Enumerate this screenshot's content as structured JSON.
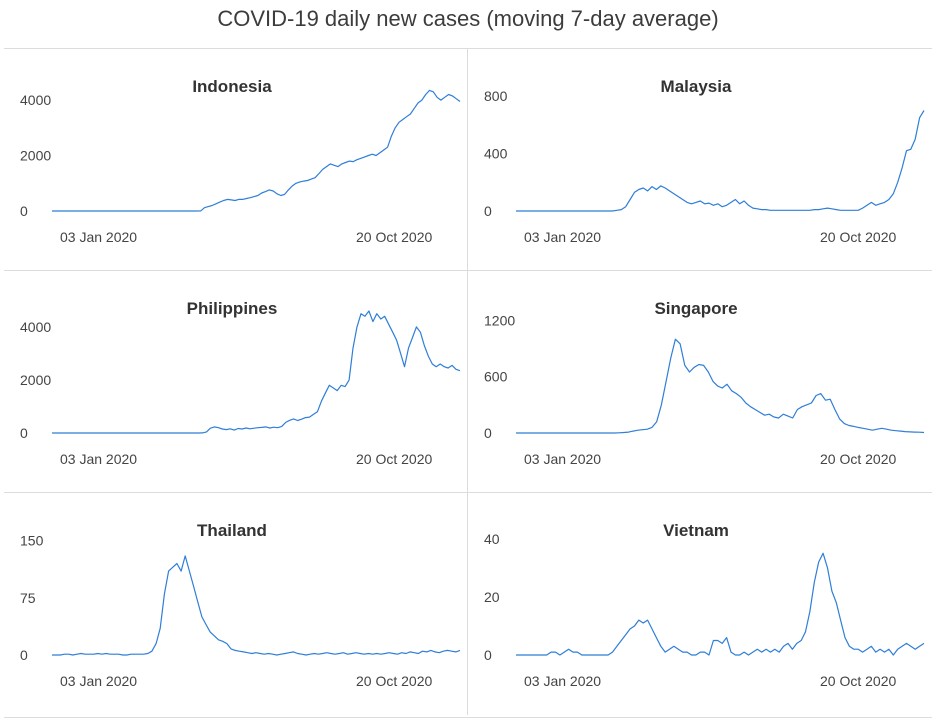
{
  "title": "COVID-19 daily new cases (moving 7-day average)",
  "colors": {
    "line": "#2f7ed8",
    "grid_border": "#dcdcdc"
  },
  "chart_data": [
    {
      "type": "line",
      "title": "Indonesia",
      "x_tick_labels": [
        "03 Jan 2020",
        "20 Oct 2020"
      ],
      "y_ticks": [
        0,
        2000,
        4000
      ],
      "ylim": [
        0,
        4400
      ],
      "series": [
        {
          "values": [
            0,
            0,
            0,
            0,
            0,
            0,
            0,
            0,
            0,
            0,
            0,
            0,
            0,
            0,
            0,
            0,
            0,
            0,
            0,
            0,
            0,
            0,
            0,
            0,
            0,
            0,
            0,
            0,
            0,
            0,
            0,
            0,
            0,
            0,
            0,
            0,
            0,
            0,
            0,
            5,
            120,
            160,
            200,
            260,
            320,
            380,
            420,
            400,
            380,
            420,
            420,
            450,
            480,
            520,
            560,
            650,
            700,
            760,
            720,
            620,
            560,
            600,
            760,
            900,
            1000,
            1050,
            1080,
            1100,
            1150,
            1200,
            1350,
            1500,
            1600,
            1700,
            1650,
            1600,
            1700,
            1750,
            1800,
            1780,
            1850,
            1900,
            1950,
            2000,
            2050,
            2000,
            2100,
            2200,
            2300,
            2700,
            3000,
            3200,
            3300,
            3400,
            3500,
            3700,
            3900,
            4000,
            4200,
            4350,
            4300,
            4100,
            4000,
            4100,
            4200,
            4150,
            4050,
            3950
          ]
        }
      ]
    },
    {
      "type": "line",
      "title": "Malaysia",
      "x_tick_labels": [
        "03 Jan 2020",
        "20 Oct 2020"
      ],
      "y_ticks": [
        0,
        400,
        800
      ],
      "ylim": [
        0,
        850
      ],
      "series": [
        {
          "values": [
            0,
            0,
            0,
            0,
            0,
            0,
            0,
            0,
            0,
            0,
            0,
            0,
            0,
            0,
            0,
            0,
            0,
            0,
            0,
            0,
            0,
            0,
            0,
            5,
            10,
            30,
            80,
            130,
            150,
            160,
            140,
            170,
            150,
            175,
            160,
            140,
            120,
            100,
            80,
            60,
            50,
            60,
            70,
            50,
            55,
            40,
            50,
            30,
            40,
            60,
            80,
            50,
            70,
            40,
            20,
            15,
            10,
            10,
            5,
            5,
            5,
            5,
            5,
            5,
            5,
            5,
            5,
            5,
            10,
            10,
            15,
            20,
            15,
            10,
            5,
            5,
            5,
            5,
            5,
            20,
            40,
            60,
            40,
            50,
            60,
            80,
            120,
            200,
            300,
            420,
            430,
            500,
            650,
            700
          ]
        }
      ]
    },
    {
      "type": "line",
      "title": "Philippines",
      "x_tick_labels": [
        "03 Jan 2020",
        "20 Oct 2020"
      ],
      "y_ticks": [
        0,
        2000,
        4000
      ],
      "ylim": [
        0,
        4600
      ],
      "series": [
        {
          "values": [
            0,
            0,
            0,
            0,
            0,
            0,
            0,
            0,
            0,
            0,
            0,
            0,
            0,
            0,
            0,
            0,
            0,
            0,
            0,
            0,
            0,
            0,
            0,
            0,
            0,
            0,
            0,
            0,
            0,
            0,
            0,
            0,
            0,
            0,
            0,
            0,
            0,
            0,
            5,
            40,
            180,
            230,
            200,
            150,
            130,
            160,
            110,
            170,
            150,
            190,
            160,
            180,
            200,
            210,
            230,
            190,
            220,
            200,
            250,
            400,
            480,
            530,
            470,
            520,
            580,
            600,
            700,
            800,
            1200,
            1500,
            1800,
            1700,
            1600,
            1800,
            1750,
            2000,
            3200,
            4000,
            4500,
            4400,
            4600,
            4200,
            4500,
            4300,
            4400,
            4100,
            3800,
            3500,
            3000,
            2500,
            3200,
            3600,
            4000,
            3800,
            3300,
            2900,
            2600,
            2500,
            2600,
            2500,
            2450,
            2550,
            2400,
            2350
          ]
        }
      ]
    },
    {
      "type": "line",
      "title": "Singapore",
      "x_tick_labels": [
        "03 Jan 2020",
        "20 Oct 2020"
      ],
      "y_ticks": [
        0,
        600,
        1200
      ],
      "ylim": [
        0,
        1300
      ],
      "series": [
        {
          "values": [
            0,
            0,
            0,
            0,
            0,
            0,
            0,
            0,
            0,
            0,
            0,
            0,
            0,
            0,
            0,
            0,
            0,
            0,
            0,
            0,
            0,
            0,
            2,
            5,
            10,
            20,
            30,
            35,
            40,
            60,
            120,
            300,
            550,
            800,
            1000,
            950,
            720,
            650,
            700,
            730,
            720,
            650,
            550,
            500,
            480,
            520,
            450,
            420,
            380,
            320,
            280,
            250,
            220,
            190,
            200,
            170,
            160,
            200,
            180,
            160,
            250,
            280,
            300,
            320,
            400,
            420,
            350,
            360,
            250,
            150,
            100,
            80,
            70,
            60,
            50,
            40,
            30,
            40,
            50,
            40,
            30,
            25,
            20,
            15,
            12,
            10,
            8,
            5
          ]
        }
      ]
    },
    {
      "type": "line",
      "title": "Thailand",
      "x_tick_labels": [
        "03 Jan 2020",
        "20 Oct 2020"
      ],
      "y_ticks": [
        0,
        75,
        150
      ],
      "ylim": [
        0,
        160
      ],
      "series": [
        {
          "values": [
            0,
            0,
            0,
            1,
            1,
            0,
            1,
            2,
            1,
            1,
            1,
            2,
            1,
            2,
            1,
            1,
            1,
            0,
            0,
            1,
            1,
            1,
            1,
            2,
            5,
            15,
            35,
            80,
            110,
            115,
            120,
            110,
            130,
            110,
            90,
            70,
            50,
            40,
            30,
            25,
            20,
            18,
            15,
            8,
            6,
            5,
            4,
            3,
            2,
            3,
            2,
            1,
            2,
            1,
            0,
            1,
            2,
            3,
            4,
            2,
            1,
            0,
            1,
            2,
            1,
            2,
            3,
            2,
            1,
            2,
            3,
            1,
            2,
            3,
            2,
            1,
            2,
            1,
            2,
            1,
            2,
            3,
            2,
            1,
            3,
            2,
            4,
            3,
            2,
            5,
            4,
            6,
            4,
            3,
            5,
            6,
            5,
            4,
            6
          ]
        }
      ]
    },
    {
      "type": "line",
      "title": "Vietnam",
      "x_tick_labels": [
        "03 Jan 2020",
        "20 Oct 2020"
      ],
      "y_ticks": [
        0,
        20,
        40
      ],
      "ylim": [
        0,
        42
      ],
      "series": [
        {
          "values": [
            0,
            0,
            0,
            0,
            0,
            0,
            0,
            0,
            1,
            1,
            0,
            1,
            2,
            1,
            1,
            0,
            0,
            0,
            0,
            0,
            0,
            0,
            1,
            3,
            5,
            7,
            9,
            10,
            12,
            11,
            12,
            9,
            6,
            3,
            1,
            2,
            3,
            2,
            1,
            1,
            0,
            0,
            1,
            1,
            0,
            5,
            5,
            4,
            6,
            1,
            0,
            0,
            1,
            0,
            1,
            2,
            1,
            2,
            1,
            2,
            1,
            3,
            4,
            2,
            4,
            5,
            8,
            15,
            25,
            32,
            35,
            30,
            22,
            18,
            12,
            6,
            3,
            2,
            2,
            1,
            2,
            3,
            1,
            2,
            1,
            2,
            0,
            2,
            3,
            4,
            3,
            2,
            3,
            4
          ]
        }
      ]
    }
  ]
}
